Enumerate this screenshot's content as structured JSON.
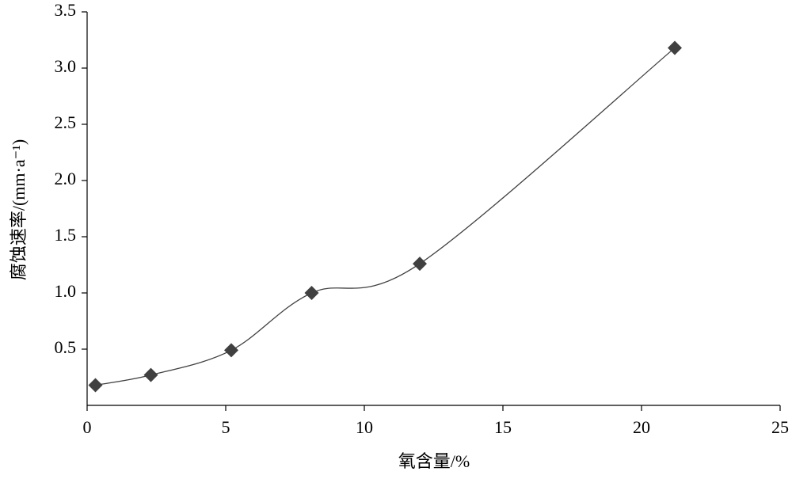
{
  "chart_data": {
    "type": "line",
    "smooth": true,
    "marker": "diamond",
    "x_label": "氧含量/%",
    "y_label": "腐蚀速率/(mm·a⁻¹)",
    "x": [
      0.3,
      2.3,
      5.2,
      8.1,
      12.0,
      21.2
    ],
    "series": [
      {
        "color": "#404040",
        "values": [
          0.18,
          0.27,
          0.49,
          1.0,
          1.26,
          3.18
        ]
      }
    ],
    "xlim": [
      0,
      25
    ],
    "xticks": [
      0,
      5,
      10,
      15,
      20,
      25
    ],
    "ylim": [
      0,
      3.5
    ],
    "yticks": [
      0.5,
      {
        "value": 1,
        "label": "1.0"
      },
      1.5,
      {
        "value": 2,
        "label": "2.0"
      },
      2.5,
      {
        "value": 3,
        "label": "3.0"
      },
      3.5
    ],
    "grid": false
  }
}
